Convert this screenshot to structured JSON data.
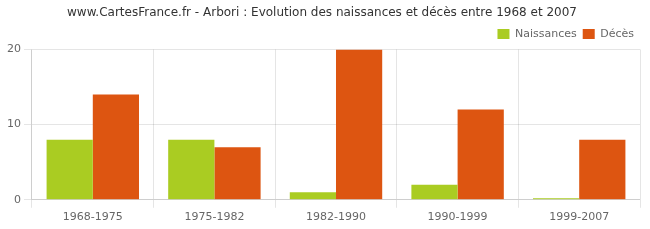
{
  "chart_data": {
    "type": "bar",
    "title": "www.CartesFrance.fr - Arbori : Evolution des naissances et décès entre 1968 et 2007",
    "categories": [
      "1968-1975",
      "1975-1982",
      "1982-1990",
      "1990-1999",
      "1999-2007"
    ],
    "series": [
      {
        "name": "Naissances",
        "color": "#aacc22",
        "values": [
          8,
          8,
          1,
          2,
          0.2
        ]
      },
      {
        "name": "Décès",
        "color": "#dd5511",
        "values": [
          14,
          7,
          20,
          12,
          8
        ]
      }
    ],
    "ylim": [
      0,
      20
    ],
    "yticks": [
      0,
      10,
      20
    ],
    "grid": true,
    "legend": "upper right"
  }
}
